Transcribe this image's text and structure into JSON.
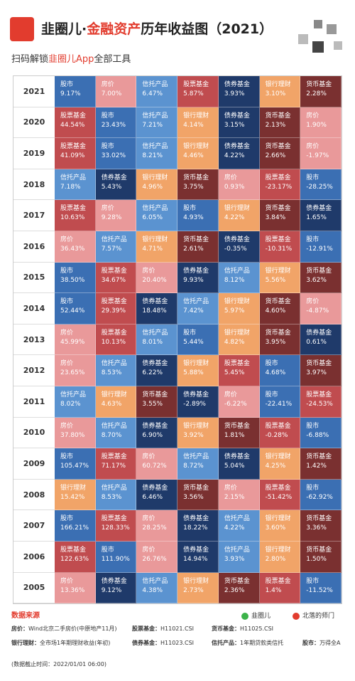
{
  "header": {
    "title_parts": [
      "韭圈儿·",
      "金融资产",
      "历年收益图（2021）"
    ],
    "subtitle_parts": [
      "扫码解锁",
      "韭圈儿App",
      "全部工具"
    ]
  },
  "colors": {
    "股市": "#3b6fb3",
    "房价": "#e9999a",
    "信托产品": "#5b93d0",
    "股票基金": "#c04c4f",
    "债券基金": "#1f3a6a",
    "银行理财": "#f1a468",
    "货币基金": "#7a3030"
  },
  "table": {
    "rows": [
      {
        "year": "2021",
        "cells": [
          [
            "股市",
            "9.17%"
          ],
          [
            "房价",
            "7.00%"
          ],
          [
            "信托产品",
            "6.47%"
          ],
          [
            "股票基金",
            "5.87%"
          ],
          [
            "债券基金",
            "3.93%"
          ],
          [
            "银行理财",
            "3.10%"
          ],
          [
            "货币基金",
            "2.28%"
          ]
        ]
      },
      {
        "year": "2020",
        "cells": [
          [
            "股票基金",
            "44.54%"
          ],
          [
            "股市",
            "23.43%"
          ],
          [
            "信托产品",
            "7.21%"
          ],
          [
            "银行理财",
            "4.14%"
          ],
          [
            "债券基金",
            "3.15%"
          ],
          [
            "货币基金",
            "2.13%"
          ],
          [
            "房价",
            "1.90%"
          ]
        ]
      },
      {
        "year": "2019",
        "cells": [
          [
            "股票基金",
            "41.09%"
          ],
          [
            "股市",
            "33.02%"
          ],
          [
            "信托产品",
            "8.21%"
          ],
          [
            "银行理财",
            "4.46%"
          ],
          [
            "债券基金",
            "4.22%"
          ],
          [
            "货币基金",
            "2.66%"
          ],
          [
            "房价",
            "-1.97%"
          ]
        ]
      },
      {
        "year": "2018",
        "cells": [
          [
            "信托产品",
            "7.18%"
          ],
          [
            "债券基金",
            "5.43%"
          ],
          [
            "银行理财",
            "4.96%"
          ],
          [
            "货币基金",
            "3.75%"
          ],
          [
            "房价",
            "0.93%"
          ],
          [
            "股票基金",
            "-23.17%"
          ],
          [
            "股市",
            "-28.25%"
          ]
        ]
      },
      {
        "year": "2017",
        "cells": [
          [
            "股票基金",
            "10.63%"
          ],
          [
            "房价",
            "9.28%"
          ],
          [
            "信托产品",
            "6.05%"
          ],
          [
            "股市",
            "4.93%"
          ],
          [
            "银行理财",
            "4.22%"
          ],
          [
            "货币基金",
            "3.84%"
          ],
          [
            "债券基金",
            "1.65%"
          ]
        ]
      },
      {
        "year": "2016",
        "cells": [
          [
            "房价",
            "36.43%"
          ],
          [
            "信托产品",
            "7.57%"
          ],
          [
            "银行理财",
            "4.71%"
          ],
          [
            "货币基金",
            "2.61%"
          ],
          [
            "债券基金",
            "-0.35%"
          ],
          [
            "股票基金",
            "-10.31%"
          ],
          [
            "股市",
            "-12.91%"
          ]
        ]
      },
      {
        "year": "2015",
        "cells": [
          [
            "股市",
            "38.50%"
          ],
          [
            "股票基金",
            "34.67%"
          ],
          [
            "房价",
            "20.40%"
          ],
          [
            "债券基金",
            "9.93%"
          ],
          [
            "信托产品",
            "8.12%"
          ],
          [
            "银行理财",
            "5.56%"
          ],
          [
            "货币基金",
            "3.62%"
          ]
        ]
      },
      {
        "year": "2014",
        "cells": [
          [
            "股市",
            "52.44%"
          ],
          [
            "股票基金",
            "29.39%"
          ],
          [
            "债券基金",
            "18.48%"
          ],
          [
            "信托产品",
            "7.42%"
          ],
          [
            "银行理财",
            "5.97%"
          ],
          [
            "货币基金",
            "4.60%"
          ],
          [
            "房价",
            "-4.87%"
          ]
        ]
      },
      {
        "year": "2013",
        "cells": [
          [
            "房价",
            "45.99%"
          ],
          [
            "股票基金",
            "10.13%"
          ],
          [
            "信托产品",
            "8.01%"
          ],
          [
            "股市",
            "5.44%"
          ],
          [
            "银行理财",
            "4.82%"
          ],
          [
            "货币基金",
            "3.95%"
          ],
          [
            "债券基金",
            "0.61%"
          ]
        ]
      },
      {
        "year": "2012",
        "cells": [
          [
            "房价",
            "23.65%"
          ],
          [
            "信托产品",
            "8.53%"
          ],
          [
            "债券基金",
            "6.22%"
          ],
          [
            "银行理财",
            "5.88%"
          ],
          [
            "股票基金",
            "5.45%"
          ],
          [
            "股市",
            "4.68%"
          ],
          [
            "货币基金",
            "3.97%"
          ]
        ]
      },
      {
        "year": "2011",
        "cells": [
          [
            "信托产品",
            "8.02%"
          ],
          [
            "银行理财",
            "4.63%"
          ],
          [
            "货币基金",
            "3.55%"
          ],
          [
            "债券基金",
            "-2.89%"
          ],
          [
            "房价",
            "-6.22%"
          ],
          [
            "股市",
            "-22.41%"
          ],
          [
            "股票基金",
            "-24.53%"
          ]
        ]
      },
      {
        "year": "2010",
        "cells": [
          [
            "房价",
            "37.80%"
          ],
          [
            "信托产品",
            "8.70%"
          ],
          [
            "债券基金",
            "6.90%"
          ],
          [
            "银行理财",
            "3.92%"
          ],
          [
            "货币基金",
            "1.81%"
          ],
          [
            "股票基金",
            "-0.28%"
          ],
          [
            "股市",
            "-6.88%"
          ]
        ]
      },
      {
        "year": "2009",
        "cells": [
          [
            "股市",
            "105.47%"
          ],
          [
            "股票基金",
            "71.17%"
          ],
          [
            "房价",
            "60.72%"
          ],
          [
            "信托产品",
            "8.72%"
          ],
          [
            "债券基金",
            "5.04%"
          ],
          [
            "银行理财",
            "4.25%"
          ],
          [
            "货币基金",
            "1.42%"
          ]
        ]
      },
      {
        "year": "2008",
        "cells": [
          [
            "银行理财",
            "15.42%"
          ],
          [
            "信托产品",
            "8.53%"
          ],
          [
            "债券基金",
            "6.46%"
          ],
          [
            "货币基金",
            "3.56%"
          ],
          [
            "房价",
            "2.15%"
          ],
          [
            "股票基金",
            "-51.42%"
          ],
          [
            "股市",
            "-62.92%"
          ]
        ]
      },
      {
        "year": "2007",
        "cells": [
          [
            "股市",
            "166.21%"
          ],
          [
            "股票基金",
            "128.33%"
          ],
          [
            "房价",
            "28.25%"
          ],
          [
            "债券基金",
            "18.22%"
          ],
          [
            "信托产品",
            "4.22%"
          ],
          [
            "银行理财",
            "3.60%"
          ],
          [
            "货币基金",
            "3.36%"
          ]
        ]
      },
      {
        "year": "2006",
        "cells": [
          [
            "股票基金",
            "122.63%"
          ],
          [
            "股市",
            "111.90%"
          ],
          [
            "房价",
            "26.76%"
          ],
          [
            "债券基金",
            "14.94%"
          ],
          [
            "信托产品",
            "3.93%"
          ],
          [
            "银行理财",
            "2.80%"
          ],
          [
            "货币基金",
            "1.50%"
          ]
        ]
      },
      {
        "year": "2005",
        "cells": [
          [
            "房价",
            "13.36%"
          ],
          [
            "债券基金",
            "9.12%"
          ],
          [
            "信托产品",
            "4.38%"
          ],
          [
            "银行理财",
            "2.73%"
          ],
          [
            "货币基金",
            "2.36%"
          ],
          [
            "股票基金",
            "1.4%"
          ],
          [
            "股市",
            "-11.52%"
          ]
        ]
      }
    ]
  },
  "footer": {
    "heading": "数据来源",
    "sources": [
      [
        [
          "房价：",
          "Wind北京二手房价(中原地产11月)"
        ],
        [
          "股票基金：",
          "H11021.CSI"
        ],
        [
          "货币基金：",
          "H11025.CSI"
        ]
      ],
      [
        [
          "银行理财：",
          "全市场1年期理财收益(年初)"
        ],
        [
          "债券基金：",
          "H11023.CSI"
        ],
        [
          "信托产品：",
          "1年期贷款类信托"
        ],
        [
          "股市：",
          "万得全A"
        ]
      ]
    ],
    "note": "(数据截止时间：2022/01/01 06:00)",
    "brands": [
      "韭圈儿",
      "北落的师门"
    ]
  }
}
